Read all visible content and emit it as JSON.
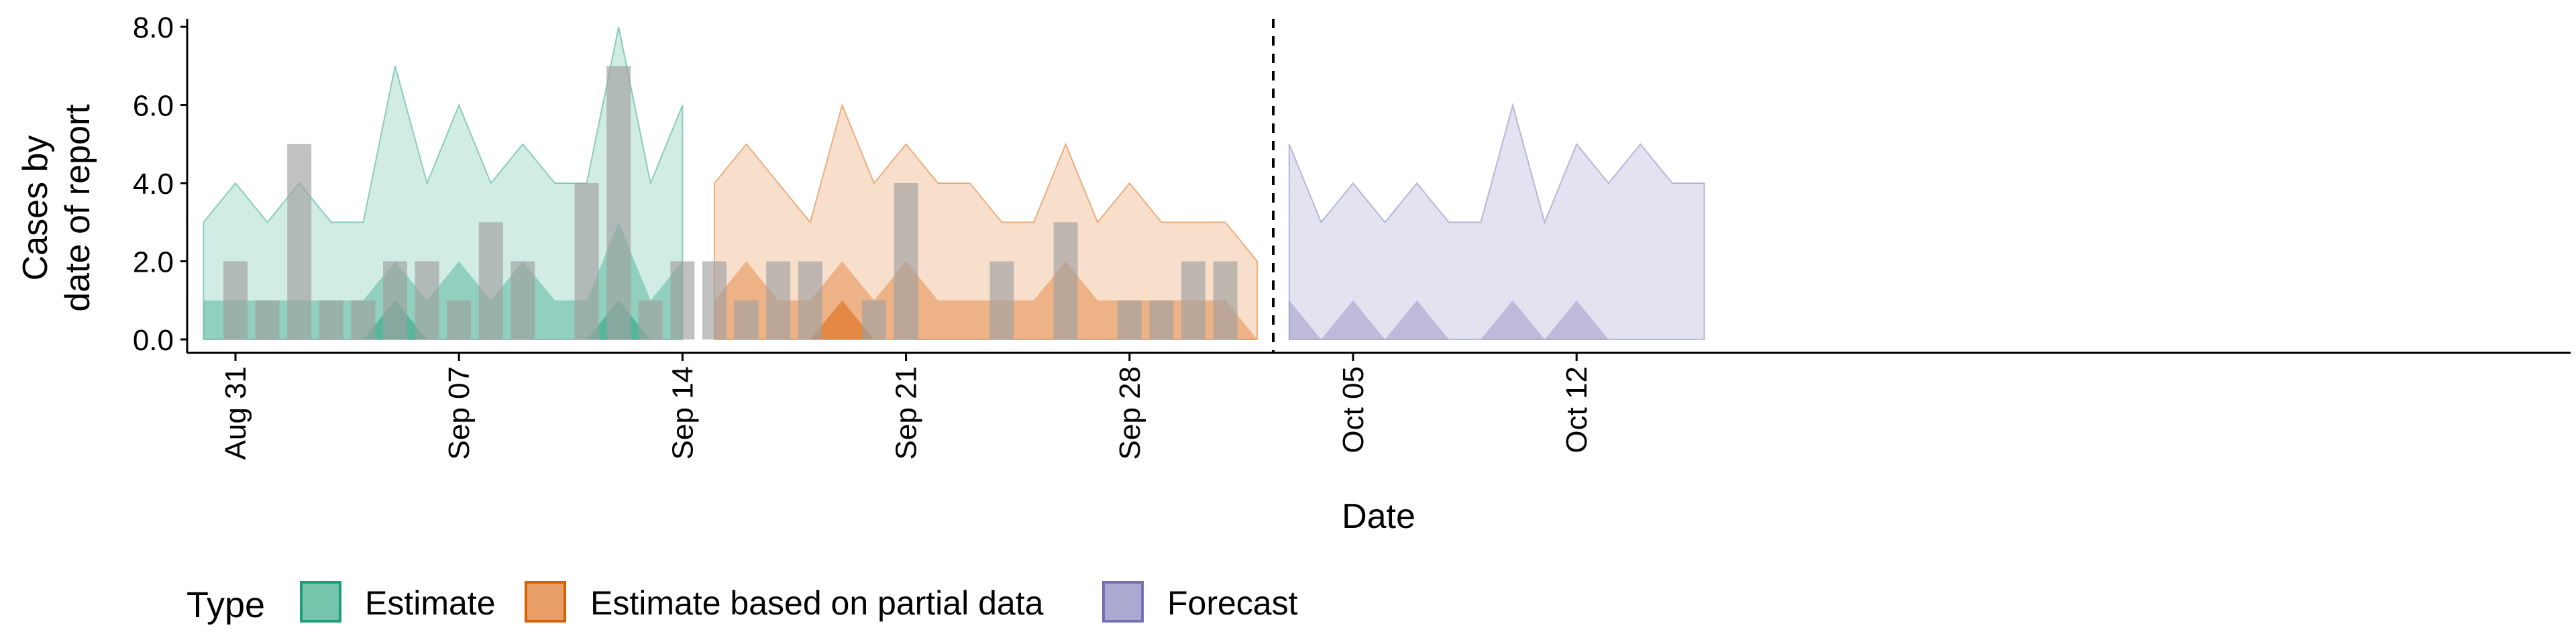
{
  "chart_data": {
    "type": "area",
    "xlabel": "Date",
    "ylabel_lines": [
      "Cases by",
      "date of report"
    ],
    "ylim": [
      0,
      8
    ],
    "y_ticks": [
      0,
      2,
      4,
      6,
      8
    ],
    "y_tick_labels": [
      "0.0",
      "2.0",
      "4.0",
      "6.0",
      "8.0"
    ],
    "x_ticks": [
      "2020-08-31",
      "2020-09-07",
      "2020-09-14",
      "2020-09-21",
      "2020-09-28",
      "2020-10-05",
      "2020-10-12"
    ],
    "x_tick_labels": [
      "Aug 31",
      "Sep 07",
      "Sep 14",
      "Sep 21",
      "Sep 28",
      "Oct 05",
      "Oct 12"
    ],
    "xlim": [
      "2020-08-27",
      "2020-10-22"
    ],
    "forecast_date": "2020-10-02",
    "grid": false,
    "legend": {
      "title": "Type",
      "position": "bottom-left"
    },
    "series": [
      {
        "name": "Estimate",
        "color": "#1B9E77",
        "x": [
          "2020-08-30",
          "2020-08-31",
          "2020-09-01",
          "2020-09-02",
          "2020-09-03",
          "2020-09-04",
          "2020-09-05",
          "2020-09-06",
          "2020-09-07",
          "2020-09-08",
          "2020-09-09",
          "2020-09-10",
          "2020-09-11",
          "2020-09-12",
          "2020-09-13",
          "2020-09-14"
        ],
        "lower_outer": [
          0,
          0,
          0,
          0,
          0,
          0,
          0,
          0,
          0,
          0,
          0,
          0,
          0,
          0,
          0,
          0
        ],
        "upper_outer": [
          3,
          4,
          3,
          4,
          3,
          3,
          7,
          4,
          6,
          4,
          5,
          4,
          4,
          8,
          4,
          6
        ],
        "lower_inner": [
          0,
          0,
          0,
          0,
          0,
          0,
          0,
          0,
          0,
          0,
          0,
          0,
          0,
          0,
          0,
          0
        ],
        "upper_inner": [
          1,
          1,
          1,
          1,
          1,
          1,
          2,
          1,
          2,
          1,
          2,
          1,
          1,
          3,
          1,
          2
        ],
        "lower_core": [
          0,
          0,
          0,
          0,
          0,
          0,
          0,
          0,
          0,
          0,
          0,
          0,
          0,
          0,
          0,
          0
        ],
        "upper_core": [
          0,
          0,
          0,
          0,
          0,
          0,
          1,
          0,
          0,
          0,
          0,
          0,
          0,
          1,
          0,
          0
        ]
      },
      {
        "name": "Estimate based on partial data",
        "color": "#D95F02",
        "x": [
          "2020-09-15",
          "2020-09-16",
          "2020-09-17",
          "2020-09-18",
          "2020-09-19",
          "2020-09-20",
          "2020-09-21",
          "2020-09-22",
          "2020-09-23",
          "2020-09-24",
          "2020-09-25",
          "2020-09-26",
          "2020-09-27",
          "2020-09-28",
          "2020-09-29",
          "2020-09-30",
          "2020-10-01",
          "2020-10-02"
        ],
        "lower_outer": [
          0,
          0,
          0,
          0,
          0,
          0,
          0,
          0,
          0,
          0,
          0,
          0,
          0,
          0,
          0,
          0,
          0,
          0
        ],
        "upper_outer": [
          4,
          5,
          4,
          3,
          6,
          4,
          5,
          4,
          4,
          3,
          3,
          5,
          3,
          4,
          3,
          3,
          3,
          2
        ],
        "lower_inner": [
          0,
          0,
          0,
          0,
          0,
          0,
          0,
          0,
          0,
          0,
          0,
          0,
          0,
          0,
          0,
          0,
          0,
          0
        ],
        "upper_inner": [
          1,
          2,
          1,
          1,
          2,
          1,
          2,
          1,
          1,
          1,
          1,
          2,
          1,
          1,
          1,
          1,
          1,
          0
        ],
        "lower_core": [
          0,
          0,
          0,
          0,
          0,
          0,
          0,
          0,
          0,
          0,
          0,
          0,
          0,
          0,
          0,
          0,
          0,
          0
        ],
        "upper_core": [
          0,
          0,
          0,
          0,
          1,
          0,
          0,
          0,
          0,
          0,
          0,
          0,
          0,
          0,
          0,
          0,
          0,
          0
        ]
      },
      {
        "name": "Forecast",
        "color": "#7570B3",
        "x": [
          "2020-10-03",
          "2020-10-04",
          "2020-10-05",
          "2020-10-06",
          "2020-10-07",
          "2020-10-08",
          "2020-10-09",
          "2020-10-10",
          "2020-10-11",
          "2020-10-12",
          "2020-10-13",
          "2020-10-14",
          "2020-10-15",
          "2020-10-16"
        ],
        "lower_outer": [
          0,
          0,
          0,
          0,
          0,
          0,
          0,
          0,
          0,
          0,
          0,
          0,
          0,
          0
        ],
        "upper_outer": [
          5,
          3,
          4,
          3,
          4,
          3,
          3,
          6,
          3,
          5,
          4,
          5,
          4,
          4
        ],
        "lower_inner": [
          0,
          0,
          0,
          0,
          0,
          0,
          0,
          0,
          0,
          0,
          0,
          0,
          0,
          0
        ],
        "upper_inner": [
          1,
          0,
          1,
          0,
          1,
          0,
          0,
          1,
          0,
          1,
          0,
          0,
          0,
          0
        ]
      }
    ],
    "reported_cases": {
      "color": "#A0A0A0",
      "x": [
        "2020-08-31",
        "2020-09-01",
        "2020-09-02",
        "2020-09-03",
        "2020-09-04",
        "2020-09-05",
        "2020-09-06",
        "2020-09-07",
        "2020-09-08",
        "2020-09-09",
        "2020-09-10",
        "2020-09-11",
        "2020-09-12",
        "2020-09-13",
        "2020-09-14",
        "2020-09-15",
        "2020-09-16",
        "2020-09-17",
        "2020-09-18",
        "2020-09-19",
        "2020-09-20",
        "2020-09-21",
        "2020-09-22",
        "2020-09-23",
        "2020-09-24",
        "2020-09-25",
        "2020-09-26",
        "2020-09-27",
        "2020-09-28",
        "2020-09-29",
        "2020-09-30",
        "2020-10-01"
      ],
      "values": [
        2,
        1,
        5,
        1,
        1,
        2,
        2,
        1,
        3,
        2,
        0,
        4,
        7,
        1,
        2,
        2,
        1,
        2,
        2,
        0,
        1,
        4,
        0,
        0,
        2,
        0,
        3,
        0,
        1,
        1,
        2,
        2
      ]
    }
  }
}
